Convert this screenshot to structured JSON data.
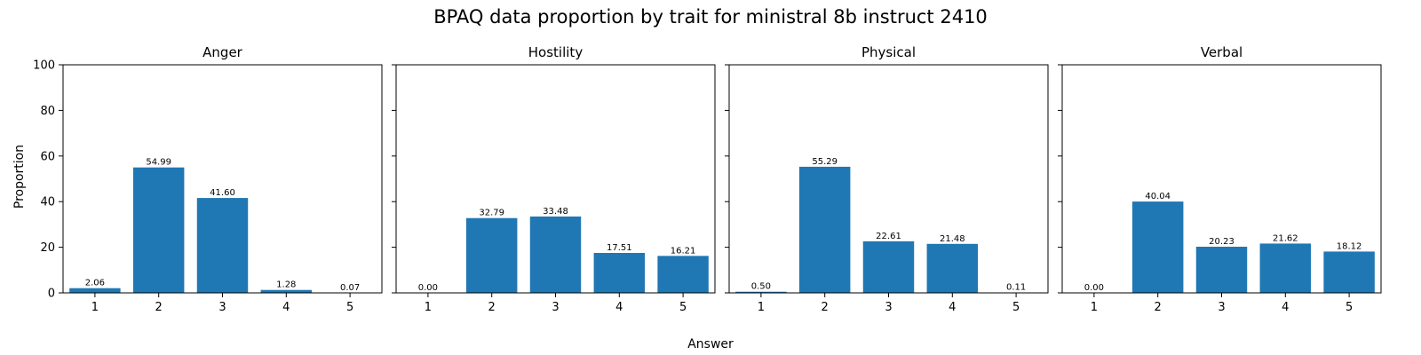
{
  "title": "BPAQ data proportion by trait for ministral 8b instruct 2410",
  "xlabel": "Answer",
  "ylabel": "Proportion",
  "colors": {
    "bar": "#1f77b4"
  },
  "chart_data": [
    {
      "type": "bar",
      "title": "Anger",
      "categories": [
        "1",
        "2",
        "3",
        "4",
        "5"
      ],
      "values": [
        2.06,
        54.99,
        41.6,
        1.28,
        0.07
      ],
      "labels": [
        "2.06",
        "54.99",
        "41.60",
        "1.28",
        "0.07"
      ],
      "xlabel": "Answer",
      "ylabel": "Proportion",
      "ylim": [
        0,
        100
      ],
      "yticks": [
        "0",
        "20",
        "40",
        "60",
        "80",
        "100"
      ]
    },
    {
      "type": "bar",
      "title": "Hostility",
      "categories": [
        "1",
        "2",
        "3",
        "4",
        "5"
      ],
      "values": [
        0.0,
        32.79,
        33.48,
        17.51,
        16.21
      ],
      "labels": [
        "0.00",
        "32.79",
        "33.48",
        "17.51",
        "16.21"
      ],
      "xlabel": "Answer",
      "ylabel": "Proportion",
      "ylim": [
        0,
        100
      ]
    },
    {
      "type": "bar",
      "title": "Physical",
      "categories": [
        "1",
        "2",
        "3",
        "4",
        "5"
      ],
      "values": [
        0.5,
        55.29,
        22.61,
        21.48,
        0.11
      ],
      "labels": [
        "0.50",
        "55.29",
        "22.61",
        "21.48",
        "0.11"
      ],
      "xlabel": "Answer",
      "ylabel": "Proportion",
      "ylim": [
        0,
        100
      ]
    },
    {
      "type": "bar",
      "title": "Verbal",
      "categories": [
        "1",
        "2",
        "3",
        "4",
        "5"
      ],
      "values": [
        0.0,
        40.04,
        20.23,
        21.62,
        18.12
      ],
      "labels": [
        "0.00",
        "40.04",
        "20.23",
        "21.62",
        "18.12"
      ],
      "xlabel": "Answer",
      "ylabel": "Proportion",
      "ylim": [
        0,
        100
      ]
    }
  ]
}
